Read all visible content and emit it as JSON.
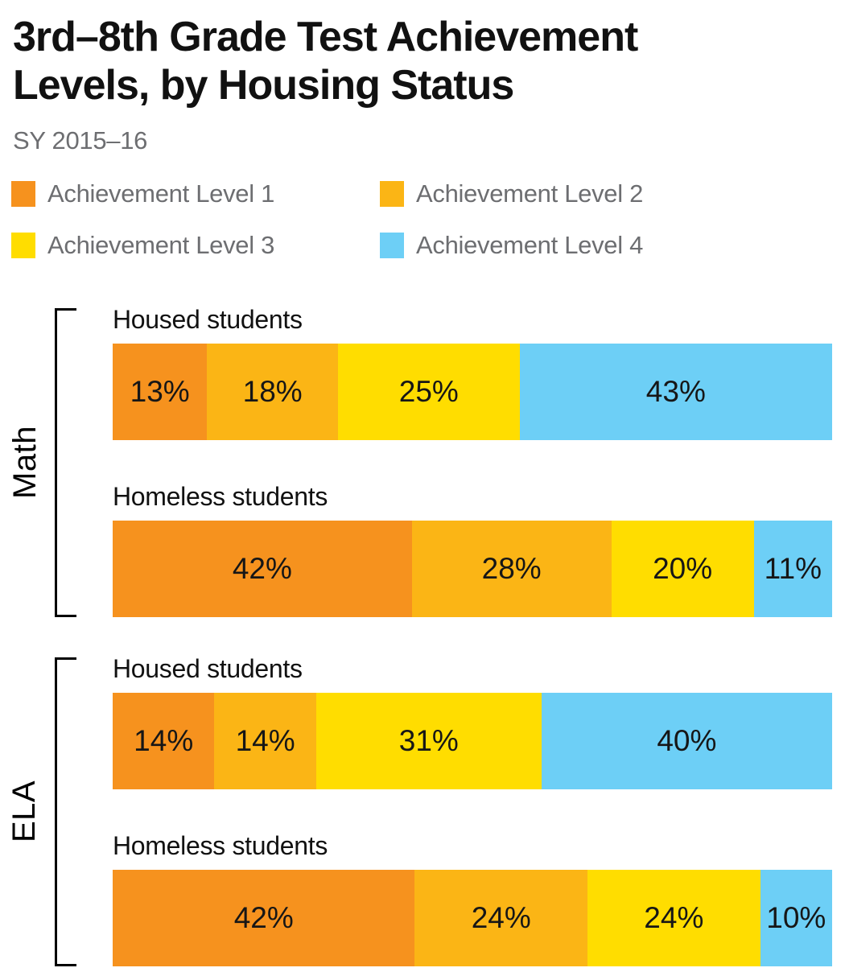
{
  "title": "3rd–8th Grade Test Achievement Levels, by Housing Status",
  "subtitle": "SY 2015–16",
  "chart_data": {
    "type": "bar",
    "variant": "horizontal-stacked-percentage",
    "unit": "%",
    "title": "3rd–8th Grade Test Achievement Levels, by Housing Status",
    "subtitle": "SY 2015–16",
    "legend_position": "top",
    "axis": "none",
    "series": [
      {
        "name": "Achievement Level 1",
        "color": "#f6921e"
      },
      {
        "name": "Achievement Level 2",
        "color": "#fbb515"
      },
      {
        "name": "Achievement Level 3",
        "color": "#ffdd00"
      },
      {
        "name": "Achievement Level 4",
        "color": "#6dcff6"
      }
    ],
    "groups": [
      {
        "group": "Math",
        "rows": [
          {
            "label": "Housed students",
            "values": [
              13,
              18,
              25,
              43
            ]
          },
          {
            "label": "Homeless students",
            "values": [
              42,
              28,
              20,
              11
            ]
          }
        ]
      },
      {
        "group": "ELA",
        "rows": [
          {
            "label": "Housed students",
            "values": [
              14,
              14,
              31,
              40
            ]
          },
          {
            "label": "Homeless students",
            "values": [
              42,
              24,
              24,
              10
            ]
          }
        ]
      }
    ],
    "text_colors": {
      "title": "#111111",
      "labels": "#111111",
      "legend_text": "#6d6e71",
      "bar_values": "#161616"
    }
  }
}
